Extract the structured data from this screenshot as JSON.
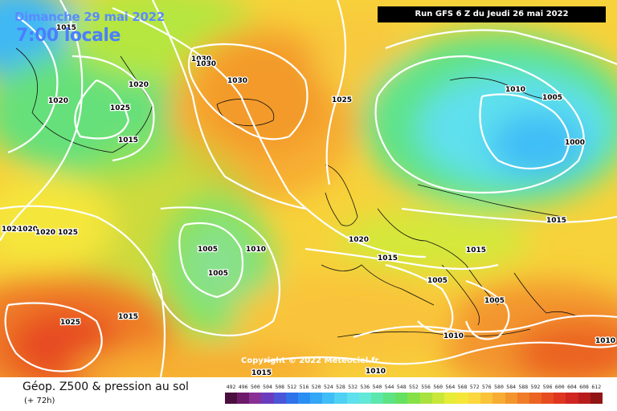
{
  "header": {
    "date": "Dimanche 29 mai 2022",
    "time": "7:00 locale",
    "run": "Run GFS 6 Z du Jeudi 26 mai 2022"
  },
  "copyright": "Copyright © 2022 Meteociel.fr",
  "footer": {
    "field": "Géop. Z500 & pression au sol",
    "lead": "(+ 72h)"
  },
  "scale": {
    "ticks": [
      "492",
      "496",
      "500",
      "504",
      "508",
      "512",
      "516",
      "520",
      "524",
      "528",
      "532",
      "536",
      "540",
      "544",
      "548",
      "552",
      "556",
      "560",
      "564",
      "568",
      "572",
      "576",
      "580",
      "584",
      "588",
      "592",
      "596",
      "600",
      "604",
      "608",
      "612"
    ],
    "colors": [
      "#4b0f3f",
      "#6d1a6a",
      "#8a2f96",
      "#6a3cbd",
      "#4b55d8",
      "#2f72ea",
      "#2a8ff2",
      "#33a6f5",
      "#3fbdf6",
      "#4fd1f4",
      "#5fe0ee",
      "#62e8d6",
      "#5ce7ad",
      "#5ee384",
      "#66e060",
      "#86e048",
      "#a9e23f",
      "#c9e63a",
      "#e6ec38",
      "#f5e63a",
      "#fbd83d",
      "#f9c43a",
      "#f7ad33",
      "#f3952d",
      "#ef7c28",
      "#eb6423",
      "#e74c20",
      "#df3620",
      "#d02520",
      "#b81c1c",
      "#901515"
    ]
  },
  "isobars": [
    {
      "value": "1015",
      "label_pos": "nw-top"
    },
    {
      "value": "1020",
      "label_pos": "greenland-west"
    },
    {
      "value": "1025",
      "label_pos": "greenland-mid"
    },
    {
      "value": "1015",
      "label_pos": "greenland-south"
    },
    {
      "value": "1020",
      "label_pos": "greenland-east"
    },
    {
      "value": "1030",
      "label_pos": "north-atlantic-a"
    },
    {
      "value": "1030",
      "label_pos": "north-atlantic-b"
    },
    {
      "value": "1030",
      "label_pos": "north-atlantic-c"
    },
    {
      "value": "1025",
      "label_pos": "norwegian-sea"
    },
    {
      "value": "1010",
      "label_pos": "scandinavia"
    },
    {
      "value": "1005",
      "label_pos": "baltic"
    },
    {
      "value": "1000",
      "label_pos": "russia"
    },
    {
      "value": "1015",
      "label_pos": "east-europe"
    },
    {
      "value": "1020",
      "label_pos": "atlantic-west-a"
    },
    {
      "value": "1020",
      "label_pos": "atlantic-west-b"
    },
    {
      "value": "1020",
      "label_pos": "atlantic-west-c"
    },
    {
      "value": "1025",
      "label_pos": "atlantic-west-d"
    },
    {
      "value": "1005",
      "label_pos": "low-a"
    },
    {
      "value": "1005",
      "label_pos": "low-b"
    },
    {
      "value": "1010",
      "label_pos": "mid-atlantic"
    },
    {
      "value": "1020",
      "label_pos": "bay-of-biscay"
    },
    {
      "value": "1015",
      "label_pos": "france"
    },
    {
      "value": "1015",
      "label_pos": "balkans"
    },
    {
      "value": "1005",
      "label_pos": "italy"
    },
    {
      "value": "1005",
      "label_pos": "greece"
    },
    {
      "value": "1010",
      "label_pos": "tunisia"
    },
    {
      "value": "1025",
      "label_pos": "azores"
    },
    {
      "value": "1015",
      "label_pos": "atlantic-south"
    },
    {
      "value": "1015",
      "label_pos": "bottom-left"
    },
    {
      "value": "1010",
      "label_pos": "bottom-mid"
    },
    {
      "value": "1010",
      "label_pos": "east-med"
    }
  ]
}
